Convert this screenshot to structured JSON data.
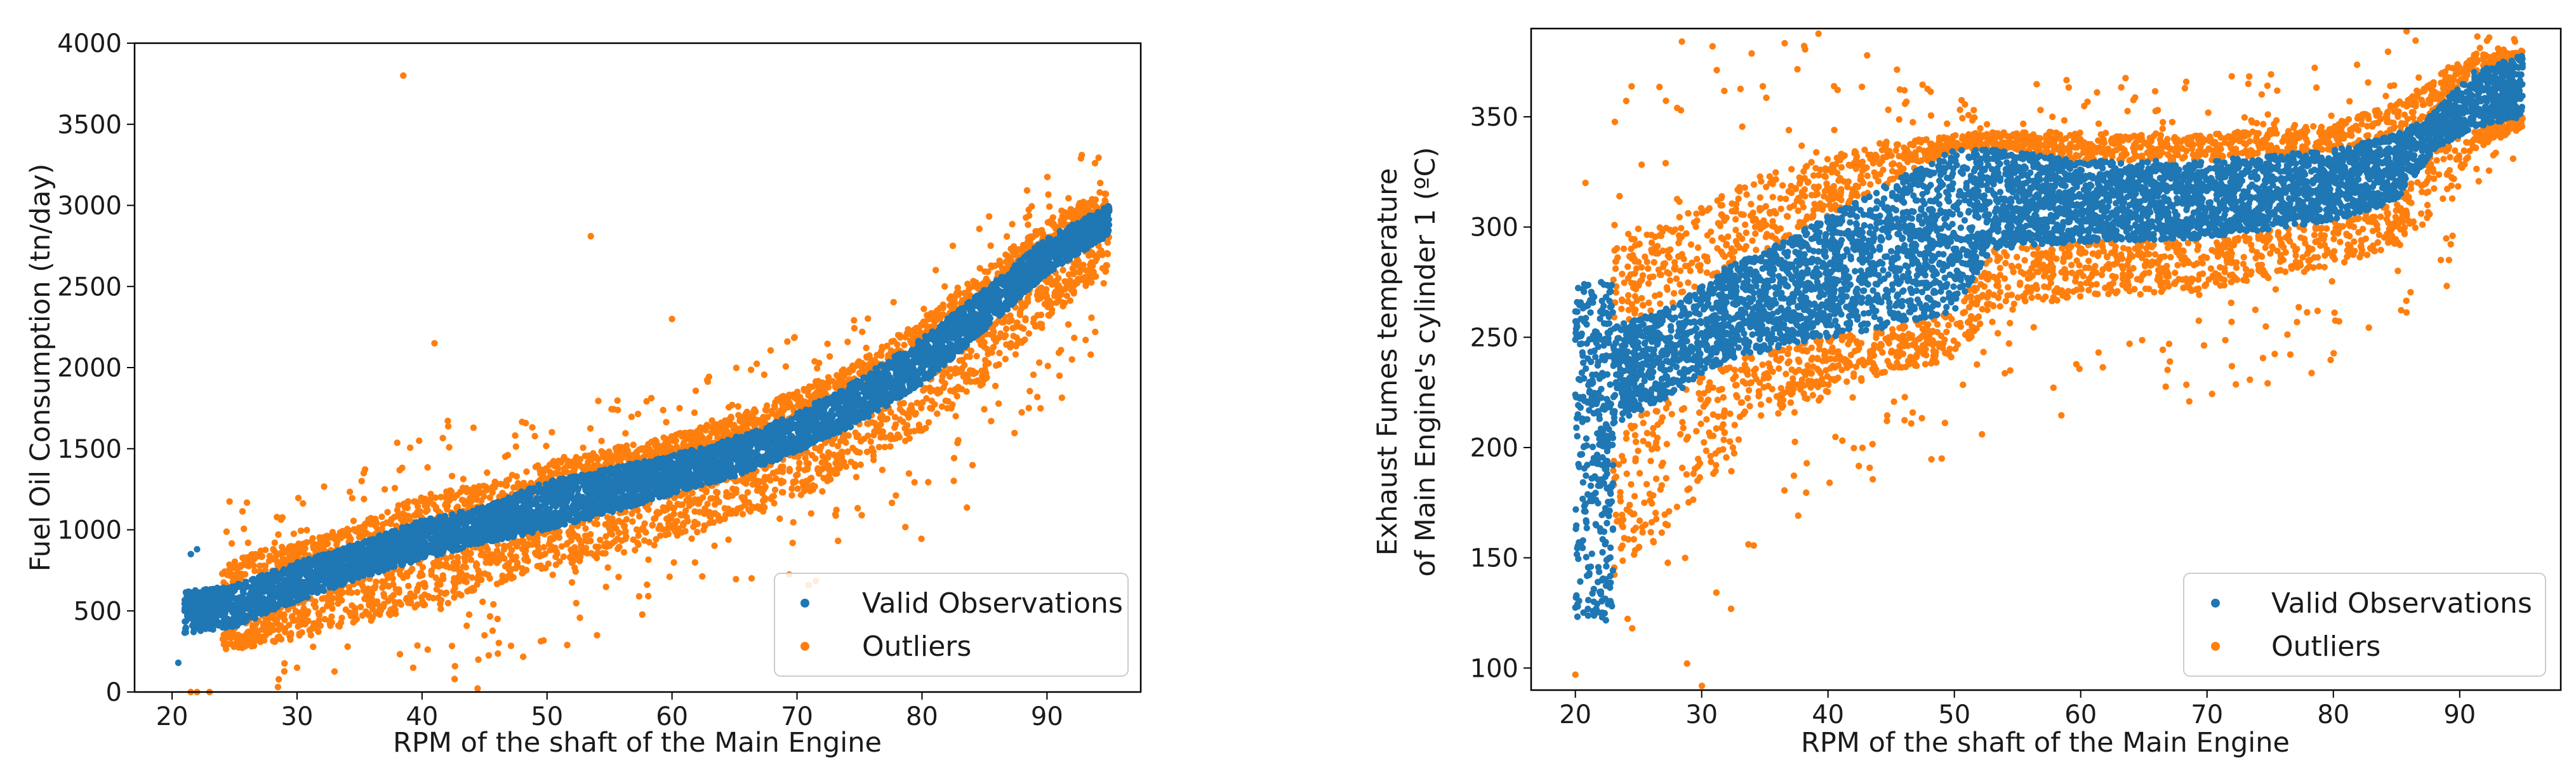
{
  "chart_data": [
    {
      "type": "scatter",
      "title": "",
      "xlabel": "RPM of the shaft of the Main Engine",
      "ylabel": "Fuel Oil Consumption (tn/day)",
      "xlim": [
        17,
        97.5
      ],
      "ylim": [
        0,
        4000
      ],
      "xticks": [
        20,
        30,
        40,
        50,
        60,
        70,
        80,
        90
      ],
      "yticks": [
        0,
        500,
        1000,
        1500,
        2000,
        2500,
        3000,
        3500,
        4000
      ],
      "grid": false,
      "legend_position": "bottom-right",
      "series": [
        {
          "name": "Valid Observations",
          "color": "#1f77b4",
          "band": {
            "x": [
              21,
              25,
              30,
              35,
              40,
              45,
              50,
              55,
              60,
              65,
              70,
              75,
              80,
              85,
              90,
              95
            ],
            "lower": [
              360,
              400,
              560,
              700,
              820,
              920,
              1000,
              1100,
              1220,
              1330,
              1480,
              1660,
              1900,
              2230,
              2580,
              2820
            ],
            "upper": [
              620,
              660,
              800,
              920,
              1060,
              1140,
              1300,
              1380,
              1460,
              1570,
              1720,
              1930,
              2180,
              2480,
              2800,
              3000
            ]
          },
          "extra_points": [
            [
              21.5,
              850
            ],
            [
              22.0,
              880
            ],
            [
              20.5,
              180
            ],
            [
              21.0,
              500
            ],
            [
              22.5,
              580
            ]
          ]
        },
        {
          "name": "Outliers",
          "color": "#ff7f0e",
          "band_above": {
            "x": [
              24,
              30,
              35,
              40,
              45,
              50,
              55,
              60,
              65,
              70,
              75,
              80,
              85,
              90,
              95
            ],
            "lower": [
              650,
              780,
              900,
              1000,
              1100,
              1250,
              1360,
              1450,
              1560,
              1700,
              1900,
              2150,
              2450,
              2750,
              2950
            ],
            "upper": [
              820,
              920,
              1040,
              1220,
              1280,
              1420,
              1500,
              1580,
              1700,
              1860,
              2040,
              2300,
              2600,
              2900,
              3120
            ]
          },
          "band_below": {
            "x": [
              24,
              30,
              35,
              40,
              45,
              50,
              55,
              60,
              65,
              70,
              75,
              80,
              85,
              90,
              95
            ],
            "lower": [
              250,
              330,
              420,
              520,
              640,
              760,
              850,
              950,
              1080,
              1200,
              1380,
              1600,
              1900,
              2300,
              2600
            ],
            "upper": [
              400,
              560,
              700,
              820,
              920,
              1000,
              1100,
              1220,
              1330,
              1480,
              1660,
              1900,
              2230,
              2580,
              2820
            ]
          },
          "extra_points": [
            [
              38.5,
              3800
            ],
            [
              53.5,
              2810
            ],
            [
              41.0,
              2150
            ],
            [
              21.5,
              0
            ],
            [
              22.0,
              0
            ],
            [
              23.0,
              0
            ],
            [
              92.0,
              2050
            ],
            [
              93.5,
              2080
            ],
            [
              91.0,
              1950
            ],
            [
              54.0,
              350
            ],
            [
              44.5,
              200
            ],
            [
              30.0,
              150
            ],
            [
              60.0,
              2300
            ]
          ]
        }
      ]
    },
    {
      "type": "scatter",
      "title": "",
      "xlabel": "RPM of the shaft of the Main Engine",
      "ylabel_line1": "Exhaust Fumes temperature",
      "ylabel_line2": "of Main Engine's cylinder 1 (ºC)",
      "xlim": [
        16.5,
        98
      ],
      "ylim": [
        90,
        390
      ],
      "xticks": [
        20,
        30,
        40,
        50,
        60,
        70,
        80,
        90
      ],
      "yticks": [
        100,
        150,
        200,
        250,
        300,
        350
      ],
      "grid": false,
      "legend_position": "bottom-right",
      "series": [
        {
          "name": "Valid Observations",
          "color": "#1f77b4",
          "band": {
            "x": [
              23,
              28,
              32,
              36,
              40,
              45,
              50,
              53,
              60,
              70,
              80,
              85,
              88,
              91,
              95
            ],
            "lower": [
              210,
              225,
              240,
              245,
              250,
              255,
              262,
              290,
              293,
              295,
              303,
              312,
              335,
              345,
              350
            ],
            "upper": [
              255,
              265,
              282,
              292,
              305,
              320,
              335,
              336,
              330,
              330,
              335,
              342,
              352,
              370,
              378
            ]
          },
          "low_rpm_cluster": {
            "x_min": 20,
            "x_max": 23,
            "y_min": 120,
            "y_max": 275
          }
        },
        {
          "name": "Outliers",
          "color": "#ff7f0e",
          "band_above": {
            "x": [
              23,
              28,
              32,
              36,
              40,
              45,
              50,
              53,
              60,
              70,
              80,
              85,
              88,
              91,
              95
            ],
            "lower": [
              255,
              265,
              282,
              292,
              305,
              320,
              335,
              336,
              330,
              330,
              335,
              342,
              352,
              370,
              378
            ],
            "upper": [
              290,
              305,
              318,
              325,
              332,
              338,
              342,
              343,
              343,
              342,
              347,
              356,
              368,
              378,
              380
            ]
          },
          "band_below": {
            "x": [
              23,
              28,
              32,
              36,
              40,
              45,
              50,
              53,
              60,
              70,
              80,
              85,
              88,
              91,
              95
            ],
            "lower": [
              140,
              165,
              195,
              215,
              225,
              235,
              240,
              262,
              268,
              272,
              282,
              292,
              305,
              335,
              345
            ],
            "upper": [
              210,
              225,
              240,
              245,
              250,
              255,
              262,
              290,
              293,
              295,
              303,
              312,
              335,
              345,
              350
            ]
          },
          "extra_points": [
            [
              20.0,
              97
            ],
            [
              20.8,
              320
            ],
            [
              24.5,
              118
            ],
            [
              23.5,
              314
            ],
            [
              49.0,
              195
            ],
            [
              67.0,
              247
            ],
            [
              40.5,
              344
            ],
            [
              33.0,
              318
            ]
          ]
        }
      ]
    }
  ]
}
